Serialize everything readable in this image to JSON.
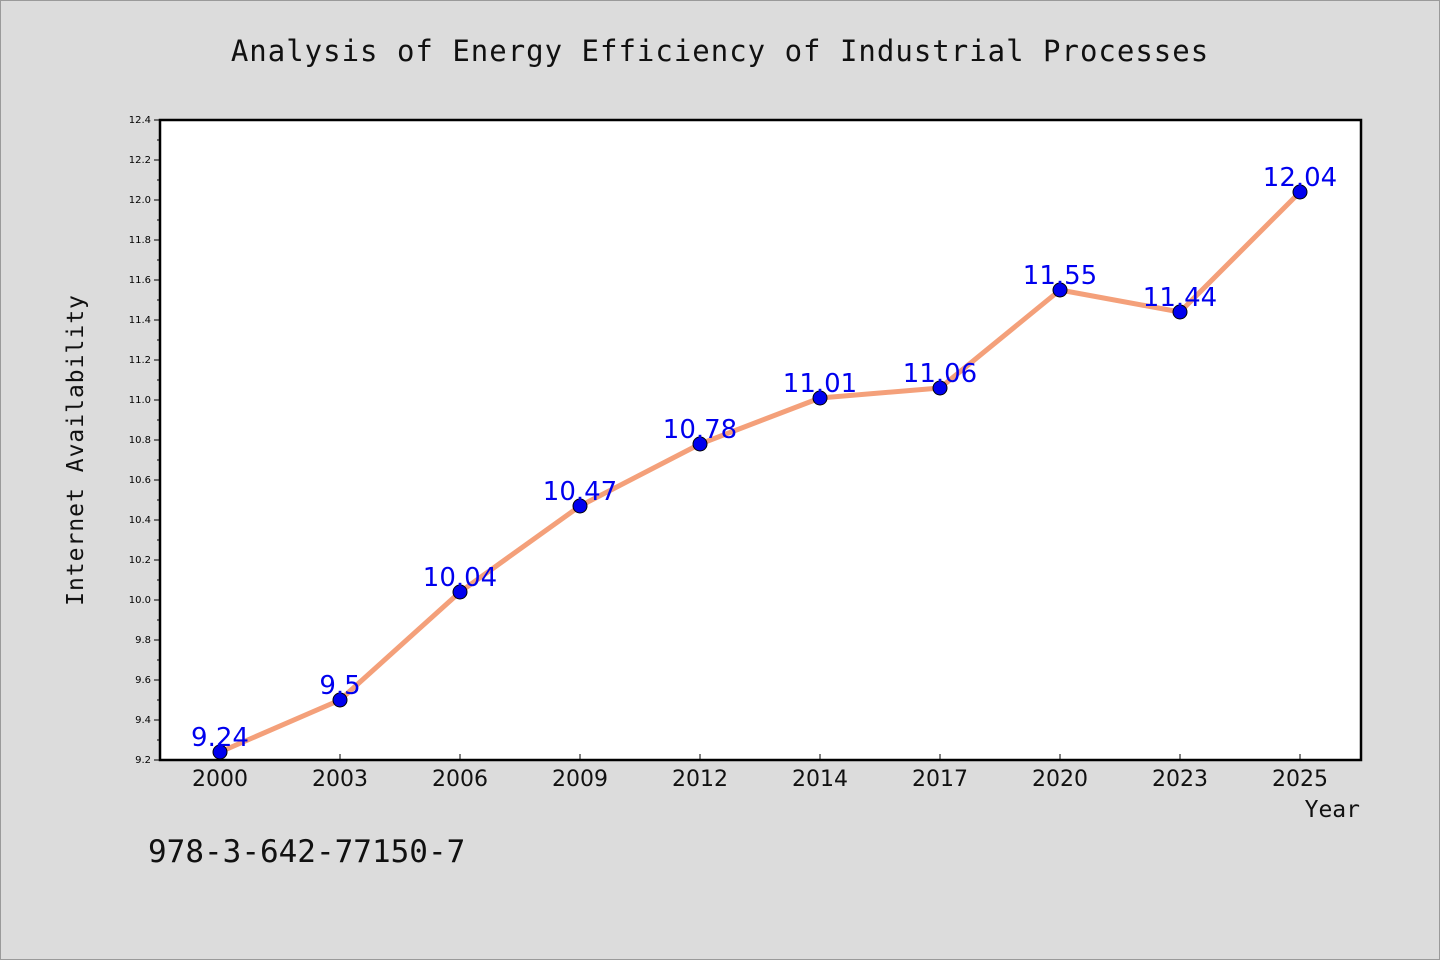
{
  "chart_data": {
    "type": "line",
    "title": "Analysis of Energy Efficiency of Industrial Processes",
    "xlabel": "Year",
    "ylabel": "Internet Availability",
    "categories": [
      "2000",
      "2003",
      "2006",
      "2009",
      "2012",
      "2014",
      "2017",
      "2020",
      "2023",
      "2025"
    ],
    "series": [
      {
        "values": [
          9.24,
          9.5,
          10.04,
          10.47,
          10.78,
          11.01,
          11.06,
          11.55,
          11.44,
          12.04
        ],
        "data_labels": [
          "9.24",
          "9.5",
          "10.04",
          "10.47",
          "10.78",
          "11.01",
          "11.06",
          "11.55",
          "11.44",
          "12.04"
        ]
      }
    ],
    "ylim": [
      9.2,
      12.4
    ],
    "yticks": [
      "9.2",
      "9.4",
      "9.6",
      "9.8",
      "10.0",
      "10.2",
      "10.4",
      "10.6",
      "10.8",
      "11.0",
      "11.2",
      "11.4",
      "11.6",
      "11.8",
      "12.0",
      "12.2",
      "12.4"
    ],
    "grid": false,
    "legend": "none",
    "colors": {
      "line": "#f4a07a",
      "marker": "#0000ee",
      "data_label": "#0000ee"
    }
  },
  "footer": {
    "code": "978-3-642-77150-7"
  }
}
